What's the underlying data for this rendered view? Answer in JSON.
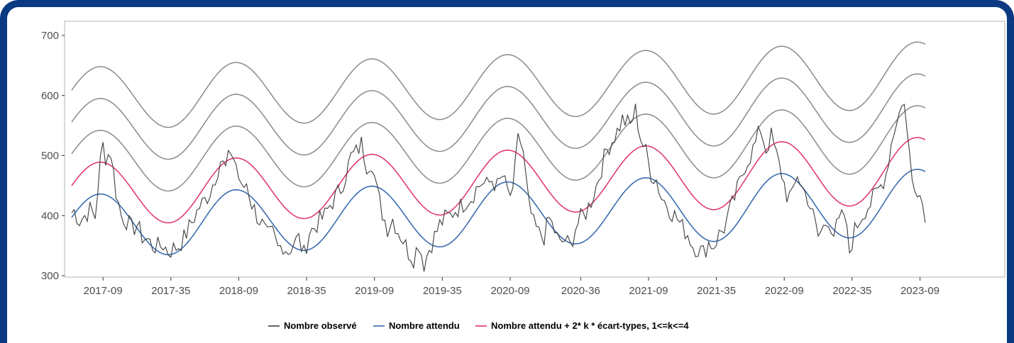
{
  "chart_data": {
    "type": "line",
    "xlabel": "",
    "ylabel": "",
    "ylim": [
      300,
      700
    ],
    "y_ticks": [
      300,
      400,
      500,
      600,
      700
    ],
    "x_ticks": [
      "2017-09",
      "2017-35",
      "2018-09",
      "2018-35",
      "2019-09",
      "2019-35",
      "2020-09",
      "2020-36",
      "2021-09",
      "2021-35",
      "2022-09",
      "2022-35",
      "2023-09"
    ],
    "x_unit": "ISO week (year-week), weekly points from 2016-50 to 2023-11",
    "grid": false,
    "legend_position": "bottom",
    "colors": {
      "observed": "#3d3d3d",
      "expected": "#3b6db0",
      "threshold_k1": "#e0306a",
      "threshold_k234": "#8a8a8a"
    },
    "series": [
      {
        "name": "Nombre observé",
        "color": "#3d3d3d",
        "anchors": [
          [
            "2016-50",
            408
          ],
          [
            "2016-52",
            392
          ],
          [
            "2017-02",
            400
          ],
          [
            "2017-04",
            410
          ],
          [
            "2017-06",
            398
          ],
          [
            "2017-08",
            490
          ],
          [
            "2017-09",
            517
          ],
          [
            "2017-10",
            498
          ],
          [
            "2017-12",
            505
          ],
          [
            "2017-14",
            440
          ],
          [
            "2017-16",
            400
          ],
          [
            "2017-18",
            392
          ],
          [
            "2017-20",
            378
          ],
          [
            "2017-22",
            384
          ],
          [
            "2017-24",
            365
          ],
          [
            "2017-26",
            360
          ],
          [
            "2017-28",
            350
          ],
          [
            "2017-30",
            348
          ],
          [
            "2017-32",
            352
          ],
          [
            "2017-34",
            340
          ],
          [
            "2017-36",
            345
          ],
          [
            "2017-38",
            350
          ],
          [
            "2017-40",
            362
          ],
          [
            "2017-42",
            380
          ],
          [
            "2017-44",
            398
          ],
          [
            "2017-46",
            415
          ],
          [
            "2017-48",
            425
          ],
          [
            "2017-50",
            440
          ],
          [
            "2017-52",
            465
          ],
          [
            "2018-02",
            492
          ],
          [
            "2018-04",
            478
          ],
          [
            "2018-06",
            508
          ],
          [
            "2018-08",
            485
          ],
          [
            "2018-10",
            442
          ],
          [
            "2018-12",
            455
          ],
          [
            "2018-14",
            420
          ],
          [
            "2018-16",
            400
          ],
          [
            "2018-18",
            385
          ],
          [
            "2018-20",
            365
          ],
          [
            "2018-22",
            370
          ],
          [
            "2018-24",
            345
          ],
          [
            "2018-26",
            352
          ],
          [
            "2018-28",
            340
          ],
          [
            "2018-30",
            355
          ],
          [
            "2018-32",
            362
          ],
          [
            "2018-34",
            335
          ],
          [
            "2018-36",
            372
          ],
          [
            "2018-38",
            380
          ],
          [
            "2018-40",
            392
          ],
          [
            "2018-42",
            400
          ],
          [
            "2018-44",
            418
          ],
          [
            "2018-46",
            430
          ],
          [
            "2018-48",
            445
          ],
          [
            "2018-50",
            468
          ],
          [
            "2018-52",
            498
          ],
          [
            "2019-02",
            505
          ],
          [
            "2019-04",
            520
          ],
          [
            "2019-06",
            485
          ],
          [
            "2019-08",
            490
          ],
          [
            "2019-10",
            440
          ],
          [
            "2019-12",
            405
          ],
          [
            "2019-14",
            380
          ],
          [
            "2019-16",
            395
          ],
          [
            "2019-18",
            375
          ],
          [
            "2019-20",
            360
          ],
          [
            "2019-22",
            340
          ],
          [
            "2019-24",
            330
          ],
          [
            "2019-26",
            355
          ],
          [
            "2019-28",
            320
          ],
          [
            "2019-30",
            345
          ],
          [
            "2019-32",
            365
          ],
          [
            "2019-34",
            385
          ],
          [
            "2019-36",
            395
          ],
          [
            "2019-38",
            400
          ],
          [
            "2019-40",
            410
          ],
          [
            "2019-42",
            415
          ],
          [
            "2019-44",
            425
          ],
          [
            "2019-46",
            430
          ],
          [
            "2019-48",
            445
          ],
          [
            "2019-50",
            455
          ],
          [
            "2019-52",
            450
          ],
          [
            "2020-02",
            460
          ],
          [
            "2020-04",
            448
          ],
          [
            "2020-06",
            465
          ],
          [
            "2020-08",
            440
          ],
          [
            "2020-10",
            430
          ],
          [
            "2020-12",
            540
          ],
          [
            "2020-14",
            500
          ],
          [
            "2020-16",
            420
          ],
          [
            "2020-18",
            385
          ],
          [
            "2020-20",
            370
          ],
          [
            "2020-22",
            365
          ],
          [
            "2020-24",
            395
          ],
          [
            "2020-26",
            375
          ],
          [
            "2020-28",
            352
          ],
          [
            "2020-30",
            360
          ],
          [
            "2020-32",
            348
          ],
          [
            "2020-34",
            380
          ],
          [
            "2020-36",
            395
          ],
          [
            "2020-38",
            405
          ],
          [
            "2020-40",
            425
          ],
          [
            "2020-42",
            450
          ],
          [
            "2020-44",
            480
          ],
          [
            "2020-46",
            510
          ],
          [
            "2020-48",
            525
          ],
          [
            "2020-50",
            540
          ],
          [
            "2020-52",
            560
          ],
          [
            "2021-02",
            550
          ],
          [
            "2021-04",
            575
          ],
          [
            "2021-06",
            530
          ],
          [
            "2021-08",
            505
          ],
          [
            "2021-10",
            470
          ],
          [
            "2021-12",
            460
          ],
          [
            "2021-14",
            430
          ],
          [
            "2021-16",
            420
          ],
          [
            "2021-18",
            405
          ],
          [
            "2021-20",
            395
          ],
          [
            "2021-22",
            380
          ],
          [
            "2021-24",
            370
          ],
          [
            "2021-26",
            350
          ],
          [
            "2021-28",
            345
          ],
          [
            "2021-30",
            338
          ],
          [
            "2021-32",
            355
          ],
          [
            "2021-34",
            350
          ],
          [
            "2021-36",
            368
          ],
          [
            "2021-38",
            380
          ],
          [
            "2021-40",
            405
          ],
          [
            "2021-42",
            430
          ],
          [
            "2021-44",
            455
          ],
          [
            "2021-46",
            485
          ],
          [
            "2021-48",
            500
          ],
          [
            "2021-50",
            520
          ],
          [
            "2021-52",
            545
          ],
          [
            "2022-02",
            510
          ],
          [
            "2022-04",
            532
          ],
          [
            "2022-06",
            500
          ],
          [
            "2022-08",
            470
          ],
          [
            "2022-10",
            435
          ],
          [
            "2022-12",
            430
          ],
          [
            "2022-14",
            470
          ],
          [
            "2022-16",
            445
          ],
          [
            "2022-18",
            430
          ],
          [
            "2022-20",
            400
          ],
          [
            "2022-22",
            365
          ],
          [
            "2022-24",
            380
          ],
          [
            "2022-26",
            395
          ],
          [
            "2022-28",
            370
          ],
          [
            "2022-30",
            388
          ],
          [
            "2022-32",
            402
          ],
          [
            "2022-34",
            340
          ],
          [
            "2022-36",
            375
          ],
          [
            "2022-38",
            395
          ],
          [
            "2022-40",
            410
          ],
          [
            "2022-42",
            420
          ],
          [
            "2022-44",
            435
          ],
          [
            "2022-46",
            450
          ],
          [
            "2022-48",
            470
          ],
          [
            "2022-50",
            520
          ],
          [
            "2022-52",
            560
          ],
          [
            "2023-02",
            580
          ],
          [
            "2023-03",
            595
          ],
          [
            "2023-04",
            540
          ],
          [
            "2023-06",
            460
          ],
          [
            "2023-08",
            448
          ],
          [
            "2023-10",
            420
          ],
          [
            "2023-11",
            405
          ]
        ]
      },
      {
        "name": "Nombre attendu",
        "color": "#3b6db0",
        "peaks": [
          [
            "2017-08",
            436
          ],
          [
            "2018-08",
            443
          ],
          [
            "2019-08",
            449
          ],
          [
            "2020-08",
            456
          ],
          [
            "2021-08",
            463
          ],
          [
            "2022-08",
            470
          ],
          [
            "2023-08",
            477
          ]
        ],
        "troughs": [
          [
            "2017-34",
            335
          ],
          [
            "2018-34",
            342
          ],
          [
            "2019-34",
            348
          ],
          [
            "2020-34",
            353
          ],
          [
            "2021-34",
            357
          ],
          [
            "2022-34",
            363
          ]
        ]
      },
      {
        "name": "Nombre attendu + 2* k * écart-types, 1<=k<=4",
        "color": "#e0306a",
        "k": 1,
        "offset_above_expected": 53
      },
      {
        "name": "Nombre attendu + 2* k * écart-types, 1<=k<=4",
        "color": "#8a8a8a",
        "k": 2,
        "offset_above_expected": 106
      },
      {
        "name": "Nombre attendu + 2* k * écart-types, 1<=k<=4",
        "color": "#8a8a8a",
        "k": 3,
        "offset_above_expected": 159
      },
      {
        "name": "Nombre attendu + 2* k * écart-types, 1<=k<=4",
        "color": "#8a8a8a",
        "k": 4,
        "offset_above_expected": 212
      }
    ],
    "legend": [
      {
        "label": "Nombre observé",
        "color": "#3d3d3d"
      },
      {
        "label": "Nombre attendu",
        "color": "#3b6db0"
      },
      {
        "label": "Nombre attendu + 2* k * écart-types, 1<=k<=4",
        "color": "#e0306a"
      }
    ]
  }
}
